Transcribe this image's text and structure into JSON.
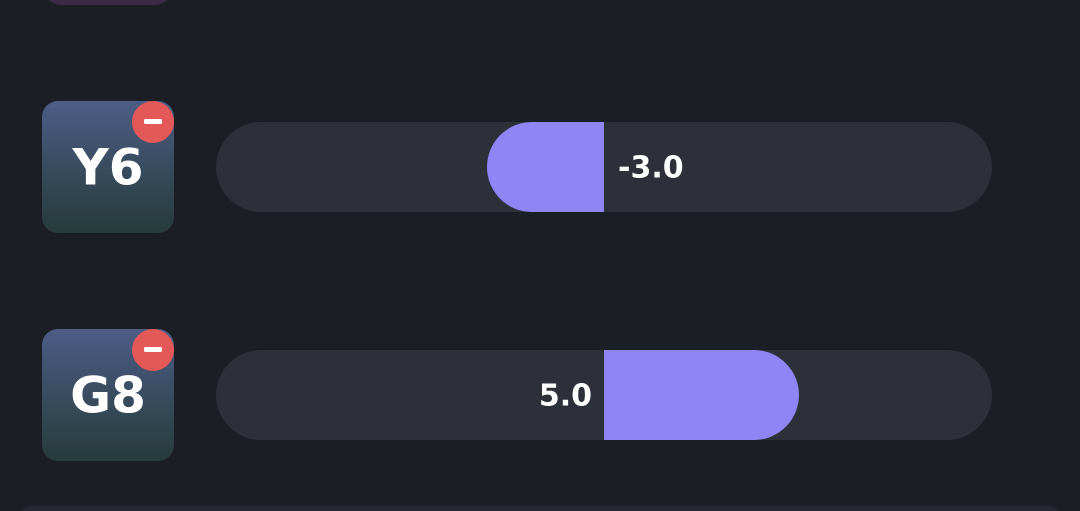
{
  "items": [
    {
      "label": "Y6",
      "value": -3,
      "value_label": "-3.0"
    },
    {
      "label": "G8",
      "value": 5,
      "value_label": "5.0"
    }
  ]
}
